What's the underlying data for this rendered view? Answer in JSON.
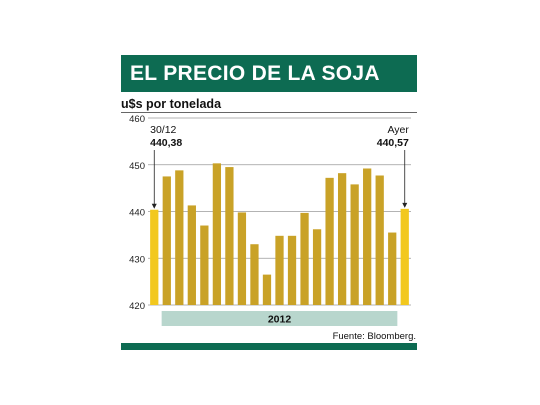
{
  "header": {
    "title": "EL PRECIO DE LA SOJA",
    "unit": "u$s por tonelada"
  },
  "footer": {
    "source": "Fuente: Bloomberg."
  },
  "colors": {
    "brand_green": "#0d6b52",
    "bar": "#c9a227",
    "bar_highlight": "#f2c81e",
    "year_band": "#b8d6cd"
  },
  "chart_data": {
    "type": "bar",
    "ylim": [
      420,
      460
    ],
    "yticks": [
      "420",
      "430",
      "440",
      "450",
      "460"
    ],
    "values": [
      440.38,
      447.5,
      448.8,
      441.3,
      437.0,
      450.3,
      449.5,
      439.8,
      433.0,
      426.5,
      434.8,
      434.8,
      439.7,
      436.2,
      447.2,
      448.2,
      445.8,
      449.2,
      447.7,
      435.5,
      440.57
    ],
    "highlight_indices": [
      0,
      20
    ],
    "x_band_label": "2012",
    "annotations": [
      {
        "bar_index": 0,
        "date": "30/12",
        "value": "440,38"
      },
      {
        "bar_index": 20,
        "date": "Ayer",
        "value": "440,57"
      }
    ],
    "grid": true
  }
}
